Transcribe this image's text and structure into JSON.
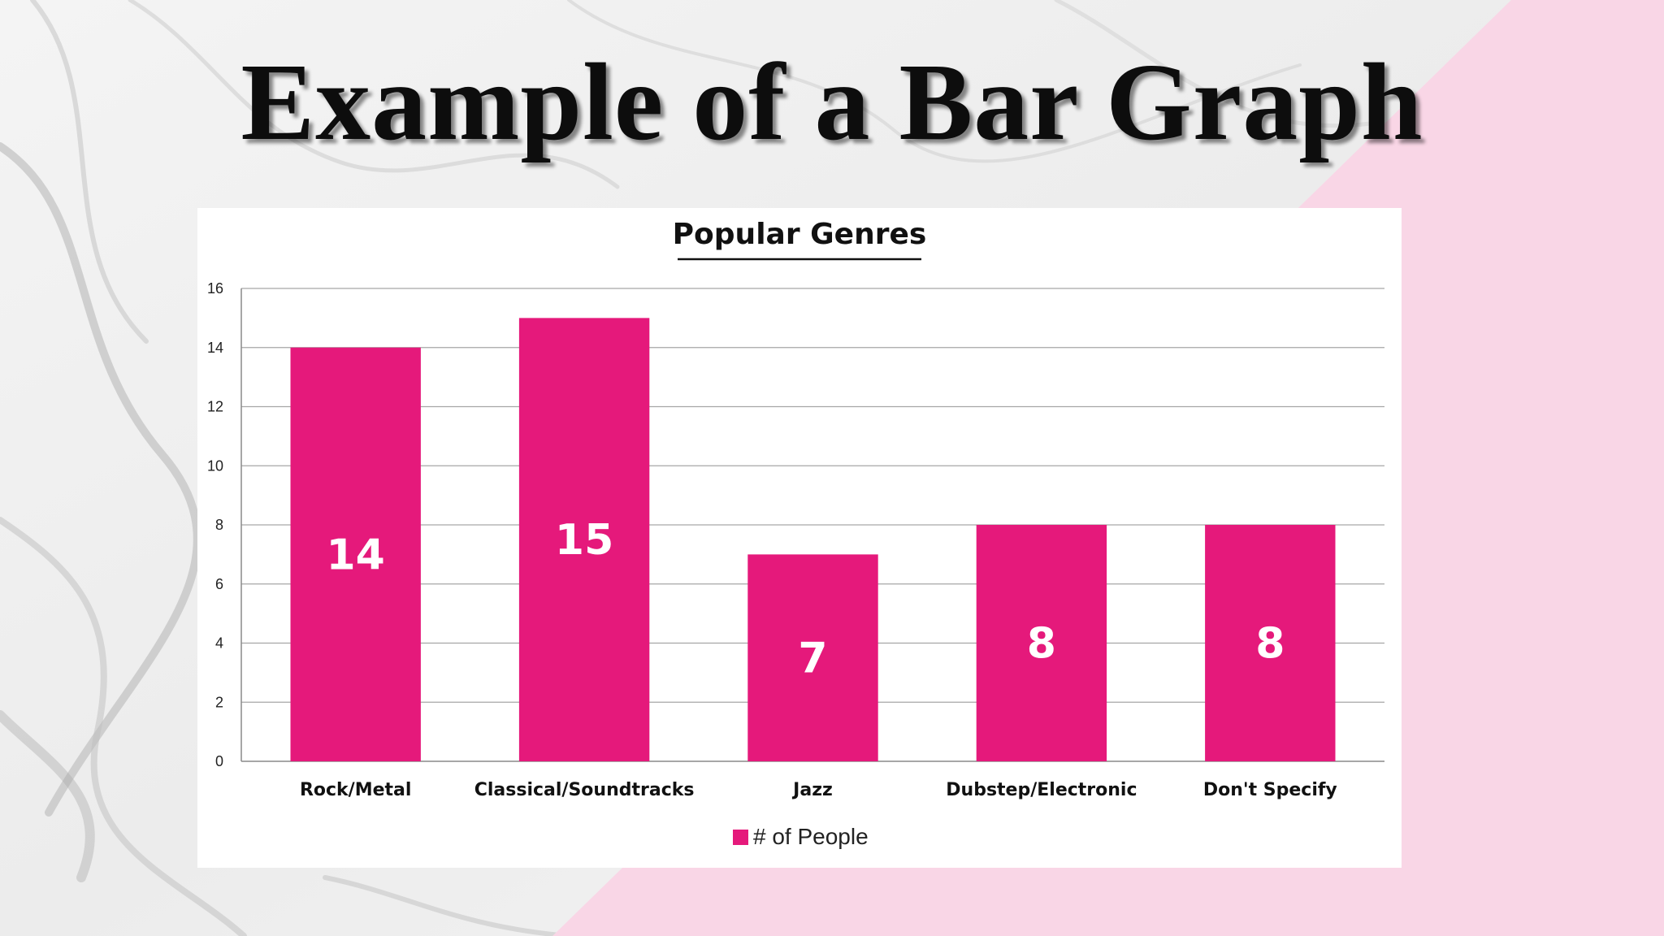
{
  "slide": {
    "title": "Example of  a Bar Graph"
  },
  "colors": {
    "bar": "#e5197b",
    "background_pink": "#f9d6e6",
    "marble": "#e8e8e8"
  },
  "chart_data": {
    "type": "bar",
    "title": "Popular Genres",
    "categories": [
      "Rock/Metal",
      "Classical/Soundtracks",
      "Jazz",
      "Dubstep/Electronic",
      "Don't Specify"
    ],
    "series": [
      {
        "name": "# of People",
        "values": [
          14,
          15,
          7,
          8,
          8
        ]
      }
    ],
    "ylim": [
      0,
      16
    ],
    "yticks": [
      0,
      2,
      4,
      6,
      8,
      10,
      12,
      14,
      16
    ],
    "grid": true,
    "legend": "bottom",
    "data_labels": "inside-bar"
  }
}
